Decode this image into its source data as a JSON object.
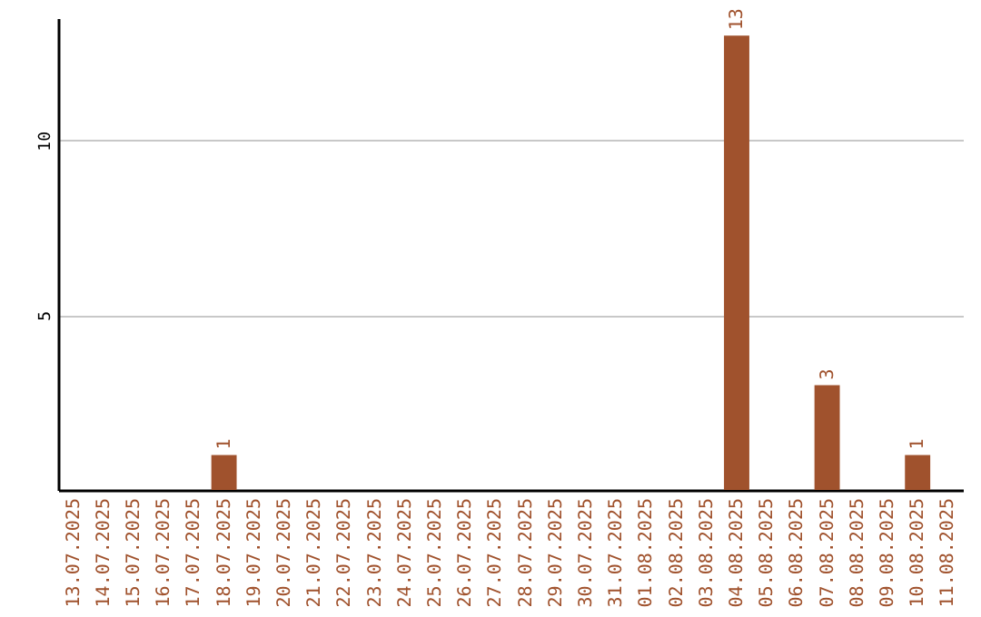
{
  "chart_data": {
    "type": "bar",
    "categories": [
      "13.07.2025",
      "14.07.2025",
      "15.07.2025",
      "16.07.2025",
      "17.07.2025",
      "18.07.2025",
      "19.07.2025",
      "20.07.2025",
      "21.07.2025",
      "22.07.2025",
      "23.07.2025",
      "24.07.2025",
      "25.07.2025",
      "26.07.2025",
      "27.07.2025",
      "28.07.2025",
      "29.07.2025",
      "30.07.2025",
      "31.07.2025",
      "01.08.2025",
      "02.08.2025",
      "03.08.2025",
      "04.08.2025",
      "05.08.2025",
      "06.08.2025",
      "07.08.2025",
      "08.08.2025",
      "09.08.2025",
      "10.08.2025",
      "11.08.2025"
    ],
    "values": [
      0,
      0,
      0,
      0,
      0,
      1,
      0,
      0,
      0,
      0,
      0,
      0,
      0,
      0,
      0,
      0,
      0,
      0,
      0,
      0,
      0,
      0,
      13,
      0,
      0,
      3,
      0,
      0,
      1,
      0
    ],
    "value_labels": [
      null,
      null,
      null,
      null,
      null,
      "1",
      null,
      null,
      null,
      null,
      null,
      null,
      null,
      null,
      null,
      null,
      null,
      null,
      null,
      null,
      null,
      null,
      "13",
      null,
      null,
      "3",
      null,
      null,
      "1",
      null
    ],
    "color": "#a0522d",
    "ylim": [
      0,
      13.5
    ],
    "yticks": [
      5,
      10
    ],
    "grid": "y"
  }
}
